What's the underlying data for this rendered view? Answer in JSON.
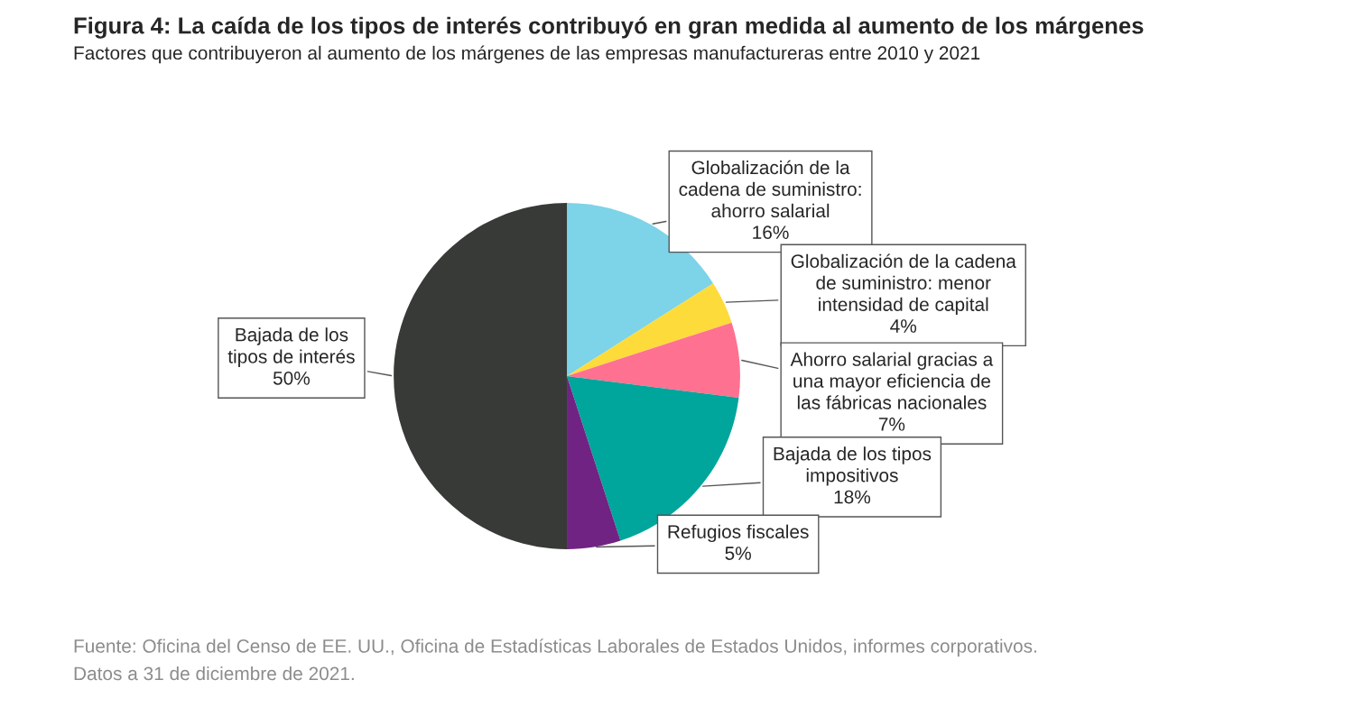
{
  "chart_data": {
    "type": "pie",
    "title": "Figura 4: La caída de los tipos de interés contribuyó en gran medida al aumento de los márgenes",
    "subtitle": "Factores que contribuyeron al aumento de los márgenes de las empresas manufactureras entre 2010 y 2021",
    "categories": [
      "Globalización de la\ncadena de suministro:\nahorro salarial",
      "Globalización de la cadena\nde suministro: menor\nintensidad de capital",
      "Ahorro salarial gracias a\nuna mayor eficiencia de\nlas fábricas nacionales",
      "Bajada de los tipos\nimpositivos",
      "Refugios fiscales",
      "Bajada de los\ntipos de interés"
    ],
    "values": [
      16,
      4,
      7,
      18,
      5,
      50
    ],
    "value_labels": [
      "16%",
      "4%",
      "7%",
      "18%",
      "5%",
      "50%"
    ],
    "colors": [
      "#7dd3e8",
      "#fddb3a",
      "#ff7191",
      "#00a59c",
      "#702382",
      "#383a37"
    ],
    "annotations": [
      "Fuente: Oficina del Censo de EE. UU., Oficina de Estadísticas Laborales de Estados Unidos, informes corporativos.",
      "Datos a 31 de diciembre de 2021."
    ]
  }
}
